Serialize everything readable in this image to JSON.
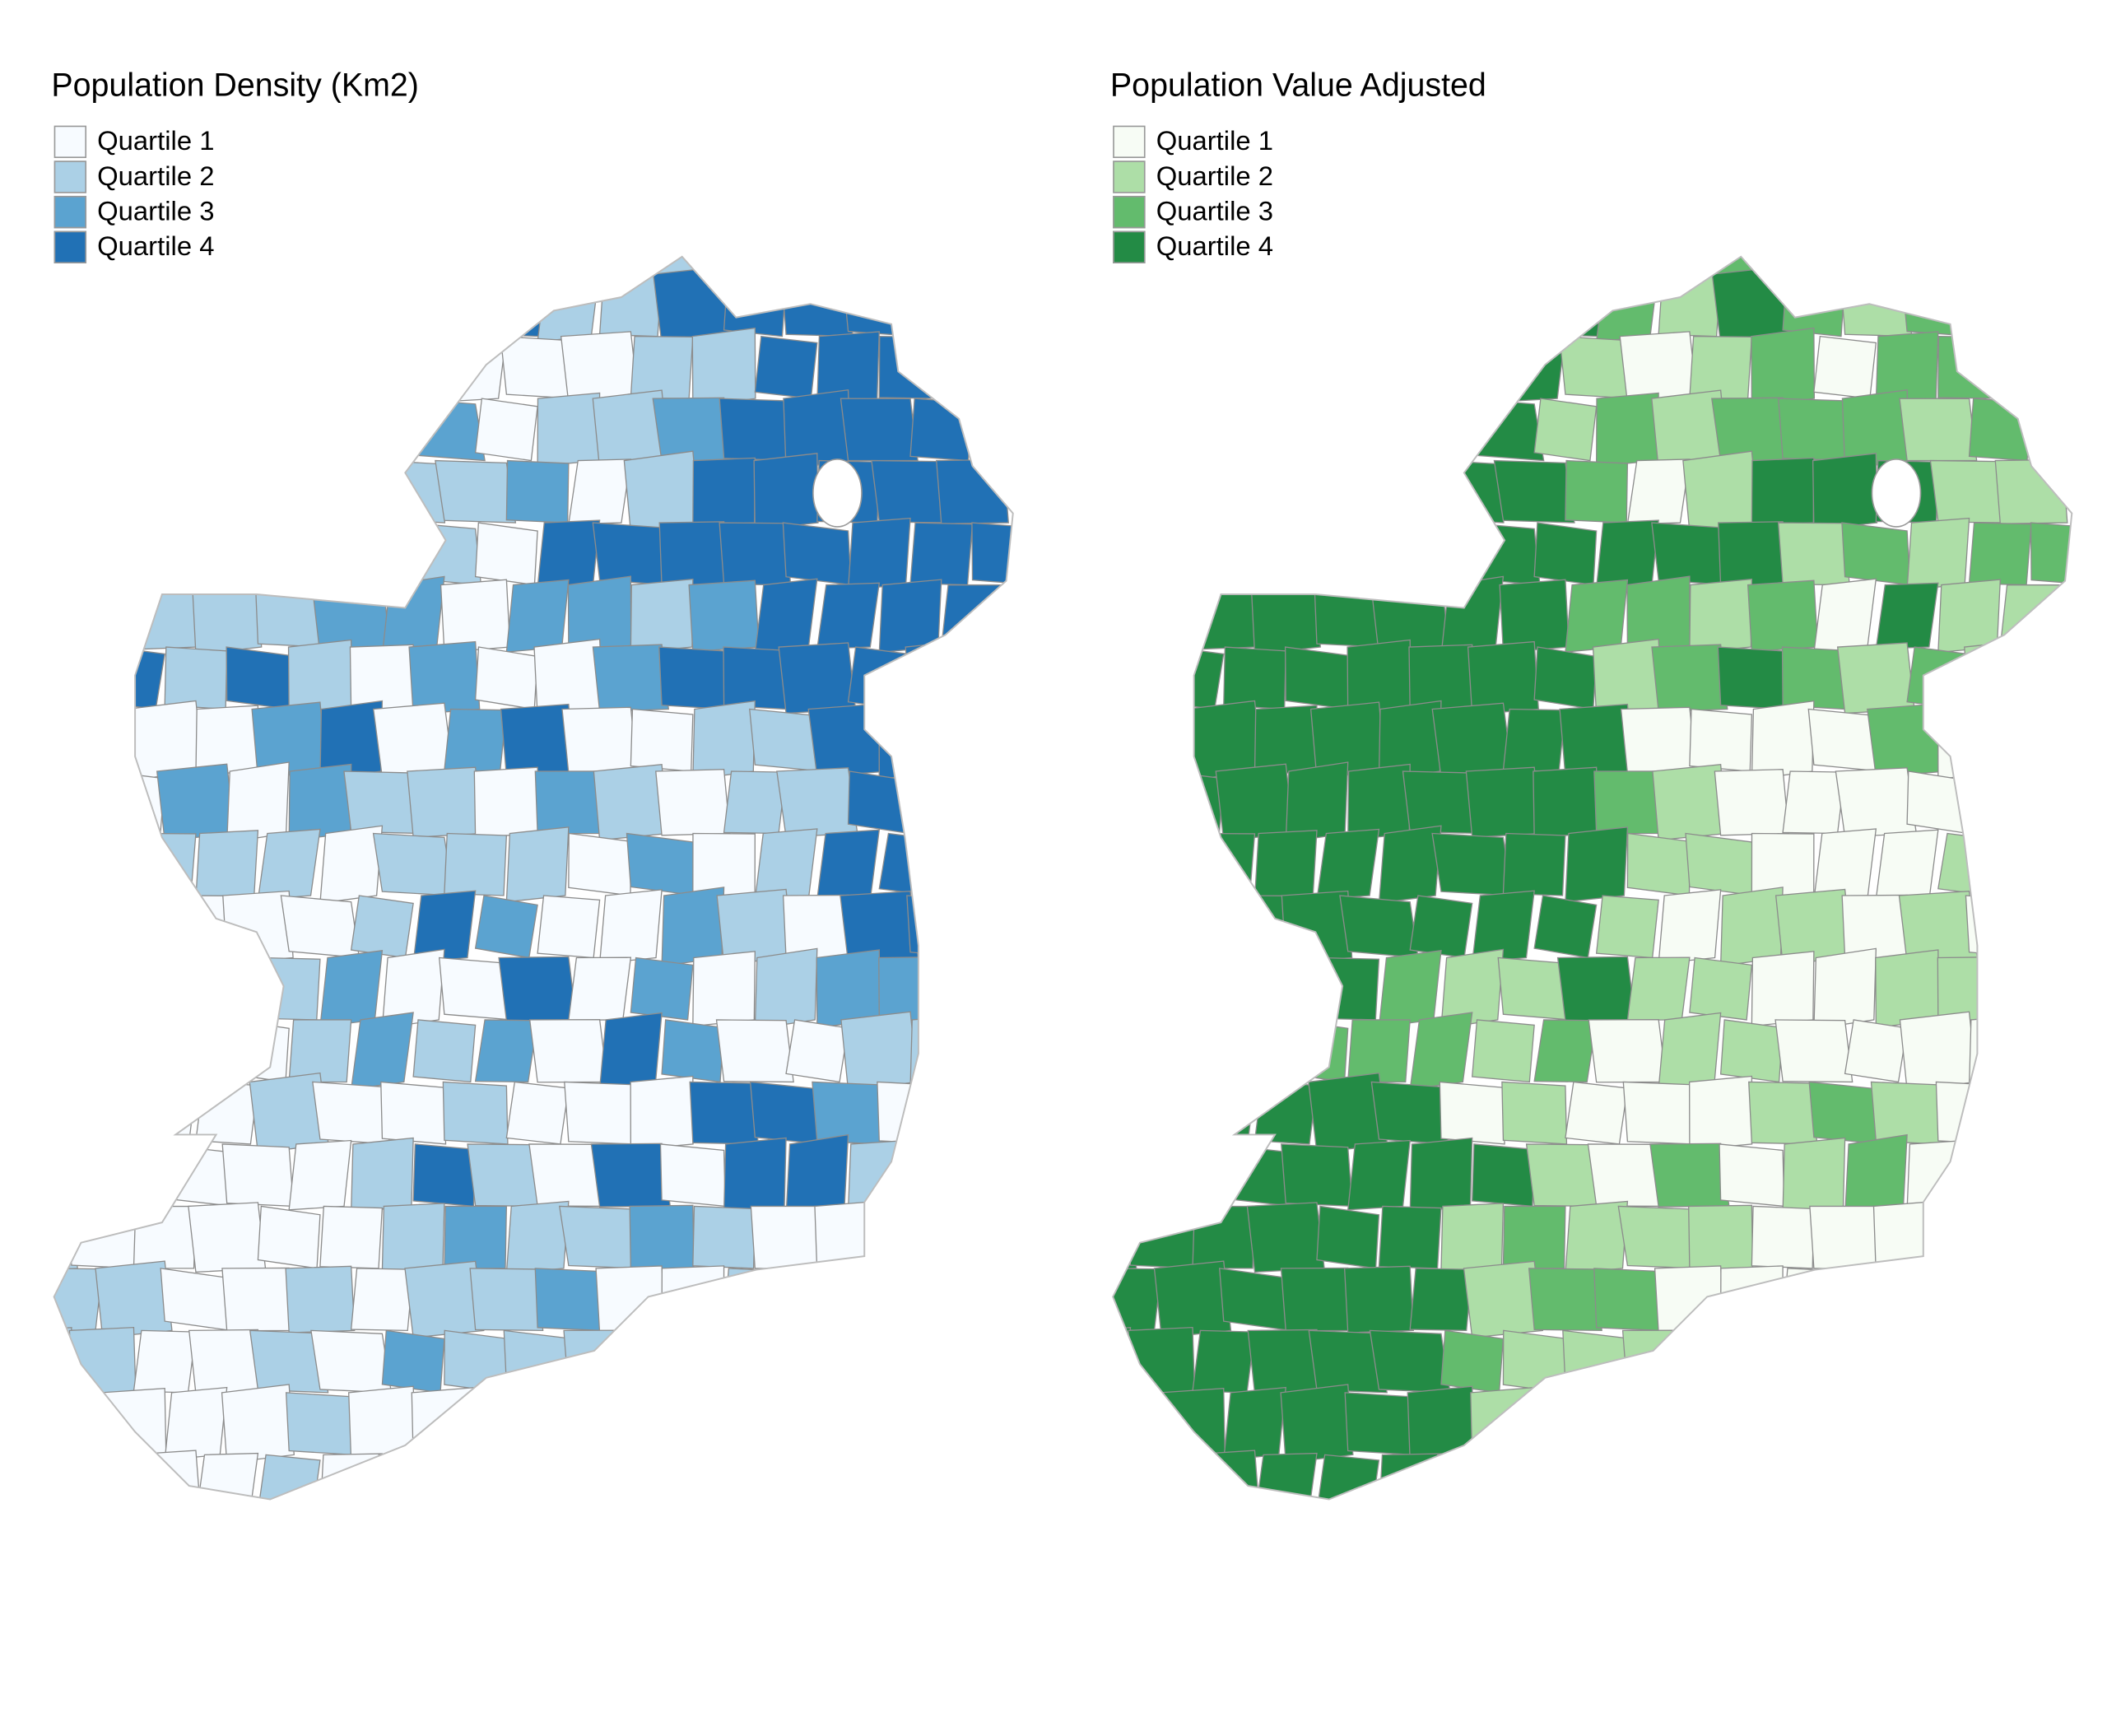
{
  "maps": [
    {
      "id": "density",
      "title": "Population Density (Km2)",
      "legend": [
        {
          "label": "Quartile 1",
          "color": "#f7fbff"
        },
        {
          "label": "Quartile 2",
          "color": "#abd0e6"
        },
        {
          "label": "Quartile 3",
          "color": "#5ba3d0"
        },
        {
          "label": "Quartile 4",
          "color": "#2171b5"
        }
      ]
    },
    {
      "id": "value",
      "title": "Population Value Adjusted",
      "legend": [
        {
          "label": "Quartile 1",
          "color": "#f7fcf5"
        },
        {
          "label": "Quartile 2",
          "color": "#addea7"
        },
        {
          "label": "Quartile 3",
          "color": "#63bb6d"
        },
        {
          "label": "Quartile 4",
          "color": "#238b45"
        }
      ]
    }
  ]
}
